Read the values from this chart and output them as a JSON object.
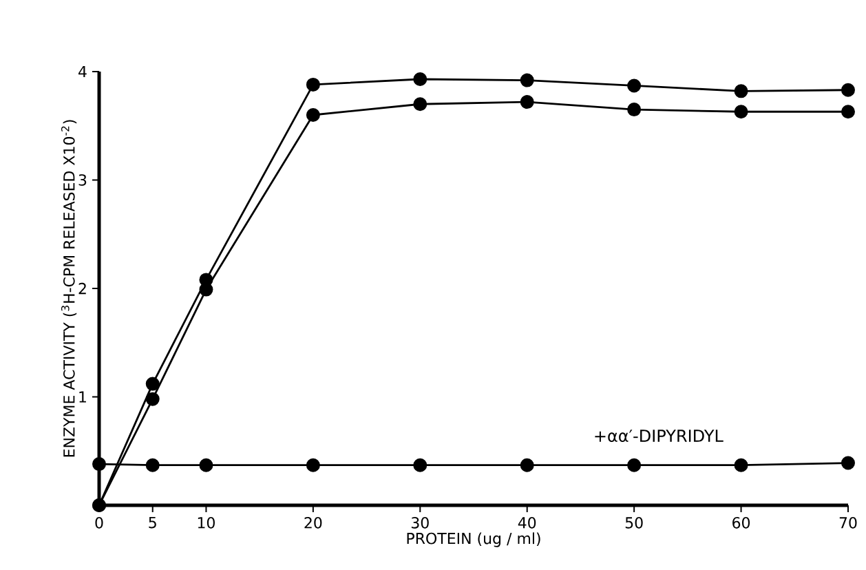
{
  "chart_data": {
    "type": "line",
    "xlabel": "PROTEIN (ug / ml)",
    "ylabel": "ENZYME ACTIVITY ($^{3}$H-CPM RELEASED X10$^{-2}$)",
    "x": [
      0,
      5,
      10,
      20,
      30,
      40,
      50,
      60,
      70
    ],
    "series": [
      {
        "color": "#000000",
        "values": [
          0,
          1.12,
          2.08,
          3.88,
          3.93,
          3.92,
          3.87,
          3.82,
          3.83
        ]
      },
      {
        "color": "#000000",
        "values": [
          0,
          0.98,
          1.99,
          3.6,
          3.7,
          3.72,
          3.65,
          3.63,
          3.63
        ]
      },
      {
        "color": "#000000",
        "values": [
          0.38,
          0.37,
          0.37,
          0.37,
          0.37,
          0.37,
          0.37,
          0.37,
          0.39
        ]
      }
    ],
    "annotations": [
      "+αα′-DIPYRIDYL"
    ],
    "xlim": [
      0,
      70
    ],
    "ylim": [
      0,
      4
    ],
    "xticks": [
      0,
      5,
      10,
      20,
      30,
      40,
      50,
      60,
      70
    ],
    "yticks": [
      1,
      2,
      3,
      4
    ],
    "marker": "circle",
    "line_style": "solid",
    "grid": false
  }
}
